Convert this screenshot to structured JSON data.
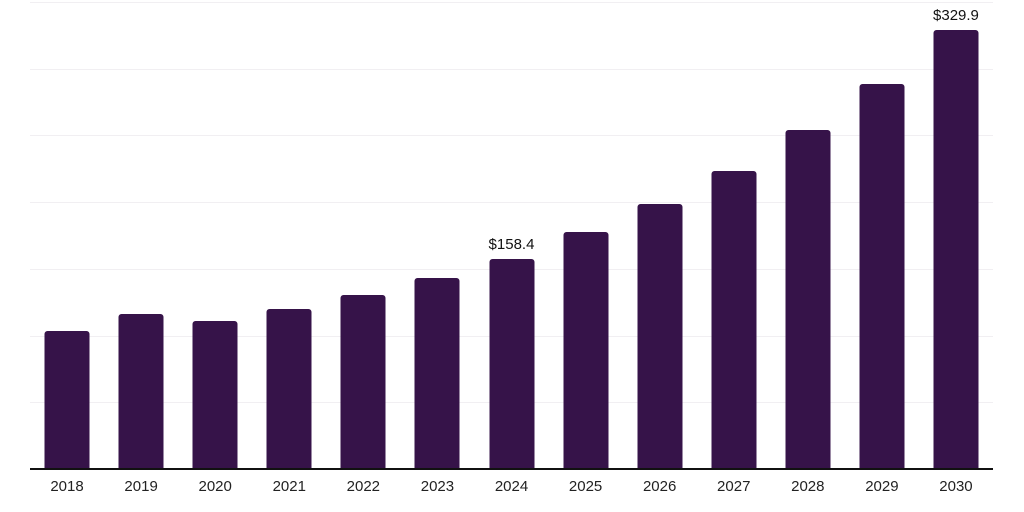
{
  "chart_data": {
    "type": "bar",
    "title": "",
    "xlabel": "",
    "ylabel": "",
    "categories": [
      "2018",
      "2019",
      "2020",
      "2021",
      "2022",
      "2023",
      "2024",
      "2025",
      "2026",
      "2027",
      "2028",
      "2029",
      "2030"
    ],
    "values": [
      104.5,
      116.9,
      111.9,
      120.6,
      131.0,
      143.6,
      158.4,
      178.2,
      199.6,
      224.3,
      254.7,
      289.0,
      329.9
    ],
    "bar_labels": [
      "",
      "",
      "",
      "",
      "",
      "",
      "$158.4",
      "",
      "",
      "",
      "",
      "",
      "$329.9"
    ],
    "value_prefix": "$",
    "ylim": [
      0,
      350
    ],
    "grid": "horizontal",
    "grid_interval": 50,
    "y_axis_labels_visible": false,
    "legend": "none",
    "colors": {
      "bar": "#361349",
      "gridline": "#f1eff2",
      "axis_line": "#111111",
      "tick_label": "#222222",
      "data_label": "#111111",
      "background": "#ffffff"
    }
  }
}
